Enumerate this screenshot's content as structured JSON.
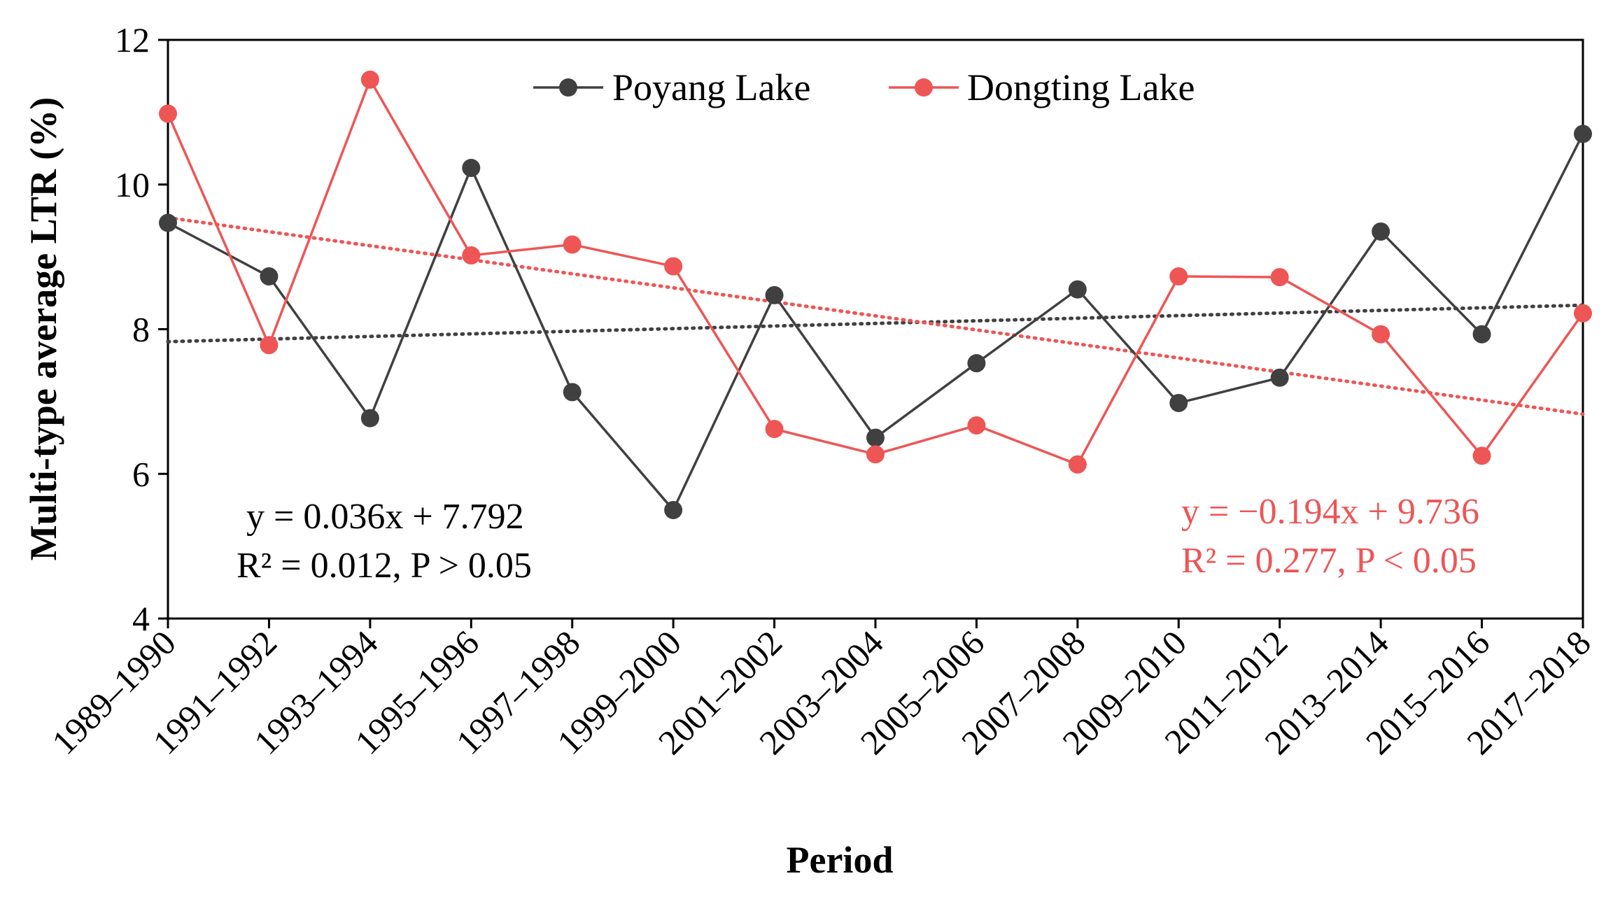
{
  "chart_data": {
    "type": "line",
    "xlabel": "Period",
    "ylabel": "Multi-type average LTR (%)",
    "ylim": [
      4,
      12
    ],
    "yticks": [
      4,
      6,
      8,
      10,
      12
    ],
    "grid": false,
    "legend_position": "top-center",
    "categories": [
      "1989–1990",
      "1991–1992",
      "1993–1994",
      "1995–1996",
      "1997–1998",
      "1999–2000",
      "2001–2002",
      "2003–2004",
      "2005–2006",
      "2007–2008",
      "2009–2010",
      "2011–2012",
      "2013–2014",
      "2015–2016",
      "2017–2018"
    ],
    "series": [
      {
        "name": "Poyang Lake",
        "color": "#404040",
        "values": [
          9.47,
          8.73,
          6.77,
          10.23,
          7.13,
          5.5,
          8.47,
          6.5,
          7.53,
          8.55,
          6.98,
          7.33,
          9.35,
          7.93,
          10.7
        ]
      },
      {
        "name": "Dongting Lake",
        "color": "#ee5555",
        "values": [
          10.98,
          7.78,
          11.45,
          9.02,
          9.17,
          8.87,
          6.62,
          6.27,
          6.67,
          6.13,
          8.73,
          8.72,
          7.93,
          6.25,
          8.22
        ]
      }
    ],
    "trendlines": [
      {
        "series": "Poyang Lake",
        "slope": 0.036,
        "intercept": 7.792,
        "style": "dotted",
        "color": "#404040",
        "equation": "y = 0.036x + 7.792",
        "stats": "R² = 0.012, P > 0.05"
      },
      {
        "series": "Dongting Lake",
        "slope": -0.194,
        "intercept": 9.736,
        "style": "dotted",
        "color": "#ee5555",
        "equation": "y = −0.194x + 9.736",
        "stats": "R² = 0.277, P < 0.05"
      }
    ]
  }
}
